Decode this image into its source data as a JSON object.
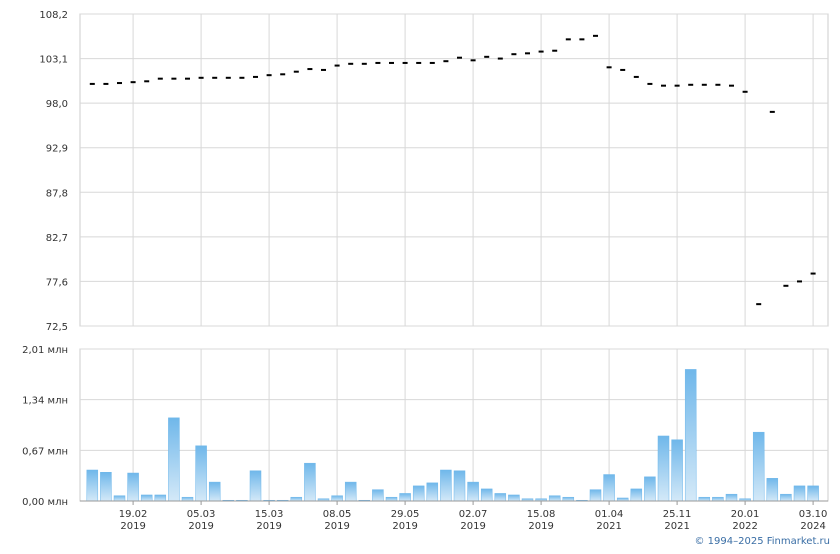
{
  "chart_data": [
    {
      "type": "scatter",
      "color": "#000000",
      "values": [
        100.2,
        100.2,
        100.3,
        100.4,
        100.5,
        100.8,
        100.8,
        100.8,
        100.9,
        100.9,
        100.9,
        100.9,
        101.0,
        101.2,
        101.3,
        101.6,
        101.9,
        101.8,
        102.3,
        102.5,
        102.5,
        102.6,
        102.6,
        102.6,
        102.6,
        102.6,
        102.8,
        103.2,
        102.9,
        103.3,
        103.1,
        103.6,
        103.7,
        103.9,
        104.0,
        105.3,
        105.3,
        105.7,
        102.1,
        101.8,
        101.0,
        100.2,
        100.0,
        100.0,
        100.1,
        100.1,
        100.1,
        100.0,
        99.3,
        75.0,
        97.0,
        77.1,
        77.6,
        78.5
      ],
      "ylim": [
        72.5,
        108.2
      ],
      "yticks": [
        {
          "value": 72.5,
          "label": "72,5"
        },
        {
          "value": 77.6,
          "label": "77,6"
        },
        {
          "value": 82.7,
          "label": "82,7"
        },
        {
          "value": 87.8,
          "label": "87,8"
        },
        {
          "value": 92.9,
          "label": "92,9"
        },
        {
          "value": 98.0,
          "label": "98,0"
        },
        {
          "value": 103.1,
          "label": "103,1"
        },
        {
          "value": 108.2,
          "label": "108,2"
        }
      ],
      "grid": true
    },
    {
      "type": "bar",
      "color": "#6fb7ea",
      "categories": [
        null,
        null,
        null,
        "19.02",
        null,
        null,
        null,
        null,
        "05.03",
        null,
        null,
        null,
        null,
        "15.03",
        null,
        null,
        null,
        null,
        "08.05",
        null,
        null,
        null,
        null,
        "29.05",
        null,
        null,
        null,
        null,
        "02.07",
        null,
        null,
        null,
        null,
        "15.08",
        null,
        null,
        null,
        null,
        "01.04",
        null,
        null,
        null,
        null,
        "25.11",
        null,
        null,
        null,
        null,
        "20.01",
        null,
        null,
        null,
        null,
        "03.10"
      ],
      "category_years": [
        null,
        null,
        null,
        "2019",
        null,
        null,
        null,
        null,
        "2019",
        null,
        null,
        null,
        null,
        "2019",
        null,
        null,
        null,
        null,
        "2019",
        null,
        null,
        null,
        null,
        "2019",
        null,
        null,
        null,
        null,
        "2019",
        null,
        null,
        null,
        null,
        "2019",
        null,
        null,
        null,
        null,
        "2021",
        null,
        null,
        null,
        null,
        "2021",
        null,
        null,
        null,
        null,
        "2022",
        null,
        null,
        null,
        null,
        "2024"
      ],
      "values": [
        0.41,
        0.38,
        0.07,
        0.37,
        0.08,
        0.08,
        1.1,
        0.05,
        0.73,
        0.25,
        0.01,
        0.01,
        0.4,
        0.01,
        0.01,
        0.05,
        0.5,
        0.03,
        0.07,
        0.25,
        0.01,
        0.15,
        0.05,
        0.1,
        0.2,
        0.24,
        0.41,
        0.4,
        0.25,
        0.16,
        0.1,
        0.08,
        0.03,
        0.03,
        0.07,
        0.05,
        0.01,
        0.15,
        0.35,
        0.04,
        0.16,
        0.32,
        0.86,
        0.81,
        1.74,
        0.05,
        0.05,
        0.09,
        0.03,
        0.91,
        0.3,
        0.09,
        0.2,
        0.2
      ],
      "ylim": [
        0,
        2.01
      ],
      "yticks": [
        {
          "value": 0,
          "label": "0,00 млн"
        },
        {
          "value": 0.67,
          "label": "0,67 млн"
        },
        {
          "value": 1.34,
          "label": "1,34 млн"
        },
        {
          "value": 2.01,
          "label": "2,01 млн"
        }
      ],
      "grid": true
    }
  ],
  "footer": "© 1994–2025 Finmarket.ru"
}
